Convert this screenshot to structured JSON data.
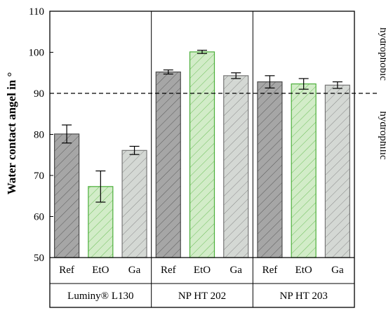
{
  "chart_data": {
    "type": "bar",
    "ylabel": "Water contact angel in °",
    "ylim": [
      50,
      110
    ],
    "yticks": [
      "50",
      "60",
      "70",
      "80",
      "90",
      "100",
      "110"
    ],
    "reference_line": {
      "value": 90,
      "style": "dashed"
    },
    "side_labels": {
      "below": "hydrophilic",
      "above": "hydrophobic"
    },
    "groups": [
      {
        "name": "Luminy® L130",
        "bars": [
          {
            "category": "Ref",
            "value": 80.1,
            "error": 2.2
          },
          {
            "category": "EtO",
            "value": 67.3,
            "error": 3.8
          },
          {
            "category": "Ga",
            "value": 76.1,
            "error": 1.0
          }
        ]
      },
      {
        "name": "NP HT 202",
        "bars": [
          {
            "category": "Ref",
            "value": 95.2,
            "error": 0.5
          },
          {
            "category": "EtO",
            "value": 100.1,
            "error": 0.4
          },
          {
            "category": "Ga",
            "value": 94.3,
            "error": 0.7
          }
        ]
      },
      {
        "name": "NP HT 203",
        "bars": [
          {
            "category": "Ref",
            "value": 92.8,
            "error": 1.5
          },
          {
            "category": "EtO",
            "value": 92.3,
            "error": 1.3
          },
          {
            "category": "Ga",
            "value": 92.0,
            "error": 0.8
          }
        ]
      }
    ],
    "colors": {
      "Ref": {
        "fill": "#a6a6a6",
        "stroke": "#4d4d4d",
        "hatch": "#5a5a5a"
      },
      "EtO": {
        "fill": "#d2ecc8",
        "stroke": "#4caf3a",
        "hatch": "#6dbf5a"
      },
      "Ga": {
        "fill": "#d4d8d4",
        "stroke": "#777777",
        "hatch": "#8a8a8a"
      }
    }
  }
}
